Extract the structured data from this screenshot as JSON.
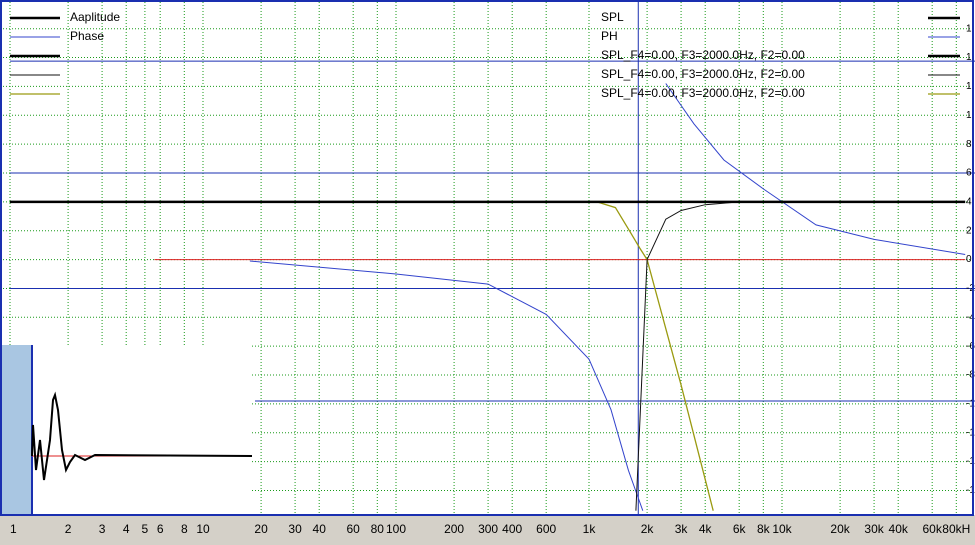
{
  "chart_data": {
    "type": "line",
    "xscale": "log",
    "xlim": [
      1,
      100000
    ],
    "ylim": [
      -17.7,
      17.85
    ],
    "grid": true,
    "xticks": [
      1,
      2,
      3,
      4,
      5,
      6,
      8,
      10,
      20,
      30,
      40,
      60,
      80,
      100,
      200,
      300,
      400,
      600,
      {
        "value": 1000,
        "label": "1k"
      },
      {
        "value": 2000,
        "label": "2k"
      },
      {
        "value": 3000,
        "label": "3k"
      },
      {
        "value": 4000,
        "label": "4k"
      },
      {
        "value": 6000,
        "label": "6k"
      },
      {
        "value": 8000,
        "label": "8k"
      },
      {
        "value": 10000,
        "label": "10k"
      },
      {
        "value": 20000,
        "label": "20k"
      },
      {
        "value": 30000,
        "label": "30k"
      },
      {
        "value": 40000,
        "label": "40k"
      },
      {
        "value": 60000,
        "label": "60k"
      },
      {
        "value": 80000,
        "label": "80kH"
      }
    ],
    "yticks": [
      {
        "value": 16,
        "label": "1"
      },
      {
        "value": 14,
        "label": "1"
      },
      {
        "value": 12,
        "label": "1"
      },
      {
        "value": 10,
        "label": "1"
      },
      8,
      6,
      4,
      2,
      0,
      -2,
      -4,
      -6,
      -8,
      {
        "value": -10,
        "label": "-1"
      },
      {
        "value": -12,
        "label": "-1"
      },
      {
        "value": -14,
        "label": "-1"
      },
      {
        "value": -16,
        "label": "-1"
      }
    ],
    "cursor_x": 1800,
    "ref_lines": [
      {
        "color": "#1a2fb0",
        "y": 13.75,
        "x": [
          1,
          100000
        ]
      },
      {
        "color": "#1a2fb0",
        "y": 6,
        "x": [
          1,
          100000
        ]
      },
      {
        "color": "#1a2fb0",
        "y": -2,
        "x": [
          1,
          100000
        ]
      },
      {
        "color": "#1a2fb0",
        "y": -9.8,
        "x": [
          18.6,
          100000
        ]
      }
    ],
    "series": [
      {
        "color": "#3344cc",
        "width": 1,
        "x": [
          17.5,
          100,
          300,
          600,
          1000,
          1300,
          1600,
          1900,
          1900,
          2500,
          3500,
          5000,
          8000,
          15000,
          30000,
          89000
        ],
        "values": [
          -0.1,
          -1,
          -1.7,
          -3.8,
          -6.9,
          -10.4,
          -14.6,
          -17.4,
          null,
          12.2,
          9.4,
          6.9,
          4.9,
          2.4,
          1.4,
          0.35
        ]
      },
      {
        "color": "#dd2222",
        "width": 1,
        "x": [
          5.6,
          89000
        ],
        "values": [
          0,
          0
        ]
      },
      {
        "color": "#9a9a10",
        "width": 1.3,
        "x": [
          1,
          1100,
          1370,
          1620,
          1830,
          2000,
          3000,
          4400
        ],
        "values": [
          4,
          4,
          3.6,
          2,
          0.8,
          0,
          -8.7,
          -17.4
        ]
      },
      {
        "color": "#111111",
        "width": 1,
        "x": [
          1750,
          2000,
          2500,
          3000,
          4000,
          6000
        ],
        "values": [
          -17.4,
          0,
          2.8,
          3.4,
          3.8,
          4
        ]
      },
      {
        "color": "#000000",
        "width": 2.5,
        "x": [
          1,
          89000
        ],
        "values": [
          4,
          4
        ]
      }
    ],
    "legend_left": [
      {
        "label": "Aaplitude",
        "color": "#000000",
        "width": 2.5
      },
      {
        "label": "Phase",
        "color": "#3344cc",
        "width": 1
      },
      {
        "color": "#000000",
        "width": 2.5
      },
      {
        "color": "#111111",
        "width": 1
      },
      {
        "color": "#9a9a10",
        "width": 1.3
      }
    ],
    "legend_right": [
      {
        "label": "SPL",
        "color": "#000000",
        "width": 2.5
      },
      {
        "label": "PH",
        "color": "#3344cc",
        "width": 1
      },
      {
        "label": "SPL_F4=0.00, F3=2000.0Hz, F2=0.00",
        "color": "#000000",
        "width": 2.5
      },
      {
        "label": "SPL_F4=0.00, F3=2000.0Hz, F2=0.00",
        "color": "#111111",
        "width": 1
      },
      {
        "label": "SPL_F4=0.00, F3=2000.0Hz, F2=0.00",
        "color": "#9a9a10",
        "width": 1.3
      }
    ],
    "inset": {
      "xlim": [
        0,
        220
      ],
      "ylim": [
        -59,
        111
      ],
      "baseline": 0,
      "color": "#000000",
      "x": [
        0,
        1,
        4,
        6,
        8,
        12,
        15,
        18,
        21,
        23,
        26,
        30,
        34,
        38,
        43,
        53,
        63,
        220
      ],
      "values": [
        0,
        31,
        -14,
        1,
        16,
        -24,
        -4,
        16,
        56,
        61,
        46,
        6,
        -14,
        -6,
        1,
        -4,
        1,
        0
      ]
    }
  }
}
